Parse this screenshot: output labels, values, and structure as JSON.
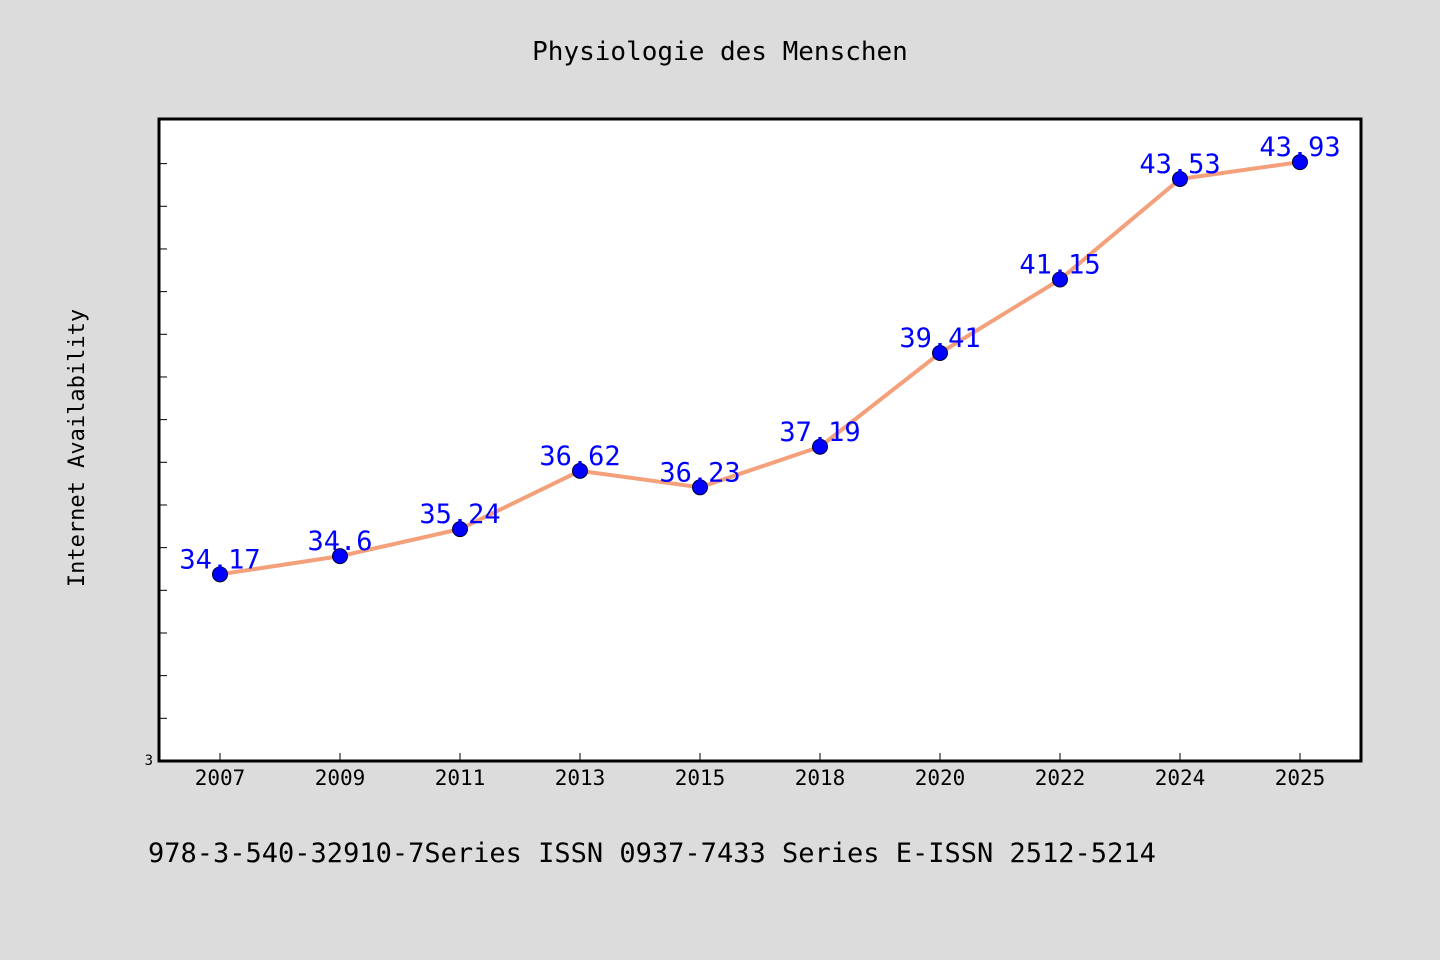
{
  "chart_data": {
    "type": "line",
    "title": "Physiologie des Menschen",
    "xlabel": "",
    "ylabel": "Internet Availability",
    "categories": [
      "2007",
      "2009",
      "2011",
      "2013",
      "2015",
      "2018",
      "2020",
      "2022",
      "2024",
      "2025"
    ],
    "series": [
      {
        "values": [
          34.17,
          34.6,
          35.24,
          36.62,
          36.23,
          37.19,
          39.41,
          41.15,
          43.53,
          43.93
        ]
      }
    ],
    "data_labels": [
      "34.17",
      "34.6",
      "35.24",
      "36.62",
      "36.23",
      "37.19",
      "39.41",
      "41.15",
      "43.53",
      "43.93"
    ],
    "y_tick_labels": [
      "3"
    ],
    "ylim": [
      29.75,
      44.95
    ],
    "grid": false,
    "colors": {
      "line": "#f4a07a",
      "marker": "#0000ff",
      "data_label": "#0000ff",
      "background": "#dcdcdc",
      "plot_background": "#ffffff"
    }
  },
  "footer": {
    "text": "978-3-540-32910-7Series ISSN 0937-7433 Series E-ISSN 2512-5214"
  }
}
